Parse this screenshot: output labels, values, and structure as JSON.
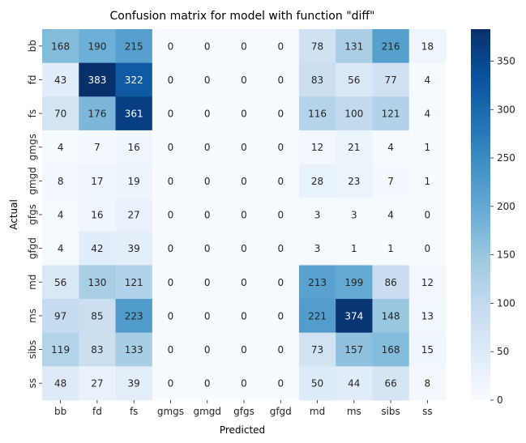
{
  "chart_data": {
    "type": "heatmap",
    "title": "Confusion matrix for model with function \"diff\"",
    "xlabel": "Predicted",
    "ylabel": "Actual",
    "x_categories": [
      "bb",
      "fd",
      "fs",
      "gmgs",
      "gmgd",
      "gfgs",
      "gfgd",
      "md",
      "ms",
      "sibs",
      "ss"
    ],
    "y_categories": [
      "bb",
      "fd",
      "fs",
      "gmgs",
      "gmgd",
      "gfgs",
      "gfgd",
      "md",
      "ms",
      "sibs",
      "ss"
    ],
    "values": [
      [
        168,
        190,
        215,
        0,
        0,
        0,
        0,
        78,
        131,
        216,
        18
      ],
      [
        43,
        383,
        322,
        0,
        0,
        0,
        0,
        83,
        56,
        77,
        4
      ],
      [
        70,
        176,
        361,
        0,
        0,
        0,
        0,
        116,
        100,
        121,
        4
      ],
      [
        4,
        7,
        16,
        0,
        0,
        0,
        0,
        12,
        21,
        4,
        1
      ],
      [
        8,
        17,
        19,
        0,
        0,
        0,
        0,
        28,
        23,
        7,
        1
      ],
      [
        4,
        16,
        27,
        0,
        0,
        0,
        0,
        3,
        3,
        4,
        0
      ],
      [
        4,
        42,
        39,
        0,
        0,
        0,
        0,
        3,
        1,
        1,
        0
      ],
      [
        56,
        130,
        121,
        0,
        0,
        0,
        0,
        213,
        199,
        86,
        12
      ],
      [
        97,
        85,
        223,
        0,
        0,
        0,
        0,
        221,
        374,
        148,
        13
      ],
      [
        119,
        83,
        133,
        0,
        0,
        0,
        0,
        73,
        157,
        168,
        15
      ],
      [
        48,
        27,
        39,
        0,
        0,
        0,
        0,
        50,
        44,
        66,
        8
      ]
    ],
    "colormap": "Blues",
    "colorbar": {
      "min": 0,
      "max": 383,
      "ticks": [
        0,
        50,
        100,
        150,
        200,
        250,
        300,
        350
      ]
    },
    "annotations": true
  }
}
